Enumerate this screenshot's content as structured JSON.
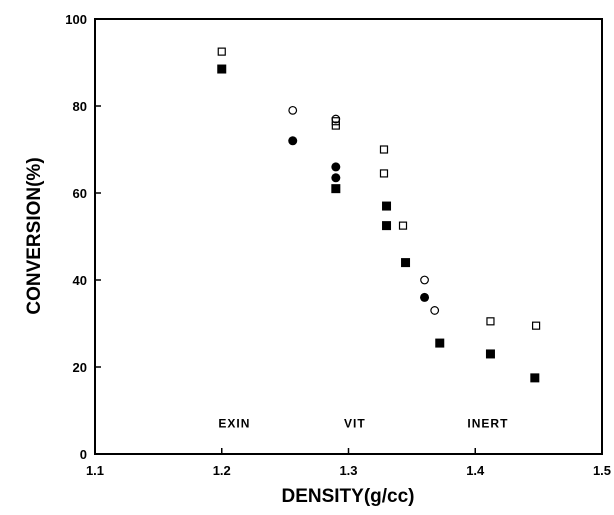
{
  "chart_data": {
    "type": "scatter",
    "title": "",
    "xlabel": "DENSITY(g/cc)",
    "ylabel": "CONVERSION(%)",
    "xlim": [
      1.1,
      1.5
    ],
    "ylim": [
      0,
      100
    ],
    "x_ticks": [
      {
        "value": 1.1,
        "label": "1.1"
      },
      {
        "value": 1.2,
        "label": "1.2"
      },
      {
        "value": 1.3,
        "label": "1.3"
      },
      {
        "value": 1.4,
        "label": "1.4"
      },
      {
        "value": 1.5,
        "label": "1.5"
      }
    ],
    "y_ticks": [
      {
        "value": 0,
        "label": "0"
      },
      {
        "value": 20,
        "label": "20"
      },
      {
        "value": 40,
        "label": "40"
      },
      {
        "value": 60,
        "label": "60"
      },
      {
        "value": 80,
        "label": "80"
      },
      {
        "value": 100,
        "label": "100"
      }
    ],
    "grid": false,
    "legend": "none",
    "region_labels": [
      {
        "text": "EXIN",
        "x": 1.21,
        "y": 7
      },
      {
        "text": "VIT",
        "x": 1.305,
        "y": 7
      },
      {
        "text": "INERT",
        "x": 1.41,
        "y": 7
      }
    ],
    "series": [
      {
        "marker": "open-square",
        "points": [
          {
            "x": 1.2,
            "y": 92.5
          },
          {
            "x": 1.29,
            "y": 76.5
          },
          {
            "x": 1.29,
            "y": 75.5
          },
          {
            "x": 1.328,
            "y": 70
          },
          {
            "x": 1.328,
            "y": 64.5
          },
          {
            "x": 1.343,
            "y": 52.5
          },
          {
            "x": 1.412,
            "y": 30.5
          },
          {
            "x": 1.448,
            "y": 29.5
          }
        ]
      },
      {
        "marker": "open-circle",
        "points": [
          {
            "x": 1.256,
            "y": 79
          },
          {
            "x": 1.29,
            "y": 77
          },
          {
            "x": 1.36,
            "y": 40
          },
          {
            "x": 1.368,
            "y": 33
          }
        ]
      },
      {
        "marker": "filled-circle",
        "points": [
          {
            "x": 1.256,
            "y": 72
          },
          {
            "x": 1.29,
            "y": 66
          },
          {
            "x": 1.29,
            "y": 63.5
          },
          {
            "x": 1.36,
            "y": 36
          }
        ]
      },
      {
        "marker": "filled-square",
        "points": [
          {
            "x": 1.2,
            "y": 88.5
          },
          {
            "x": 1.29,
            "y": 61
          },
          {
            "x": 1.33,
            "y": 57
          },
          {
            "x": 1.33,
            "y": 52.5
          },
          {
            "x": 1.345,
            "y": 44
          },
          {
            "x": 1.372,
            "y": 25.5
          },
          {
            "x": 1.412,
            "y": 23
          },
          {
            "x": 1.447,
            "y": 17.5
          }
        ]
      }
    ]
  }
}
